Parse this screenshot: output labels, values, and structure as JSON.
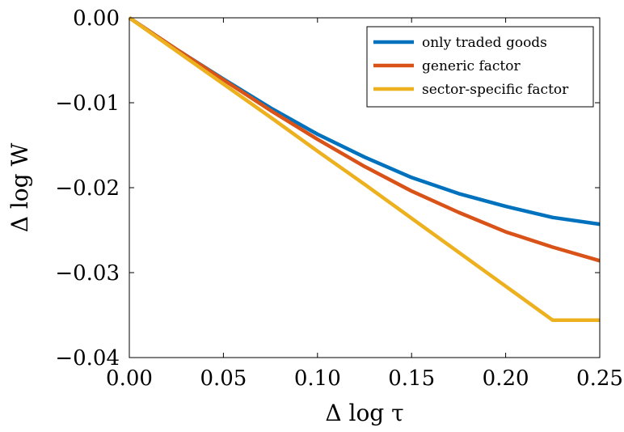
{
  "chart_data": {
    "type": "line",
    "xlabel": "Δ log τ",
    "ylabel": "Δ log W",
    "xlim": [
      0,
      0.25
    ],
    "ylim": [
      -0.04,
      0
    ],
    "xticks": [
      0,
      0.05,
      0.1,
      0.15,
      0.2,
      0.25
    ],
    "xtick_labels": [
      "0.00",
      "0.05",
      "0.10",
      "0.15",
      "0.20",
      "0.25"
    ],
    "yticks": [
      0,
      -0.01,
      -0.02,
      -0.03,
      -0.04
    ],
    "ytick_labels": [
      "0.00",
      "−0.01",
      "−0.02",
      "−0.03",
      "−0.04"
    ],
    "grid": false,
    "legend_position": "top-right",
    "x": [
      0,
      0.025,
      0.05,
      0.075,
      0.1,
      0.125,
      0.15,
      0.175,
      0.2,
      0.225,
      0.25
    ],
    "series": [
      {
        "name": "only traded goods",
        "color": "#0072BD",
        "values": [
          0,
          -0.0037,
          -0.0072,
          -0.0106,
          -0.0137,
          -0.0164,
          -0.0188,
          -0.0207,
          -0.0222,
          -0.0235,
          -0.0243
        ]
      },
      {
        "name": "generic factor",
        "color": "#D95319",
        "values": [
          0,
          -0.0037,
          -0.0073,
          -0.0109,
          -0.0143,
          -0.0175,
          -0.0204,
          -0.0229,
          -0.0252,
          -0.027,
          -0.0286
        ]
      },
      {
        "name": "sector-specific factor",
        "color": "#EDB120",
        "values": [
          0,
          -0.0039,
          -0.0078,
          -0.0117,
          -0.0157,
          -0.0196,
          -0.0236,
          -0.0276,
          -0.0316,
          -0.0356,
          -0.0356
        ]
      }
    ]
  }
}
